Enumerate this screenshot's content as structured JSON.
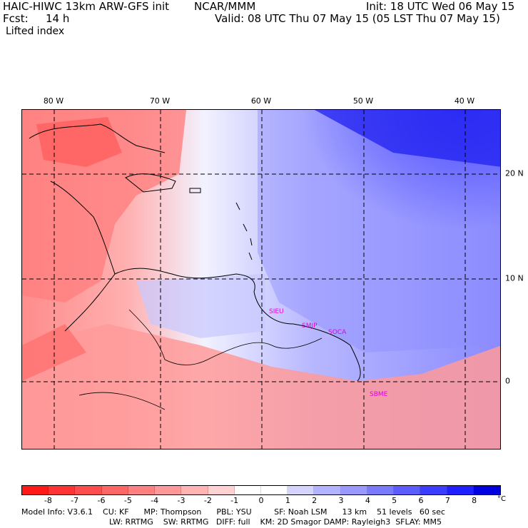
{
  "header": {
    "model": "HAIC-HIWC 13km ARW-GFS init",
    "org": "NCAR/MMM",
    "init": "Init: 18 UTC Wed 06 May 15",
    "fcst_label": "Fcst:",
    "fcst_value": "14 h",
    "valid": "Valid: 08 UTC Thu 07 May 15 (05 LST Thu 07 May 15)",
    "field": "Lifted index"
  },
  "map": {
    "lon_labels": [
      "80 W",
      "70 W",
      "60 W",
      "50 W",
      "40 W"
    ],
    "lat_labels": [
      "20 N",
      "10 N",
      "0"
    ],
    "stations": [
      "SIEU",
      "SMJP",
      "SOCA",
      "SBME"
    ]
  },
  "colorbar": {
    "unit": "°C",
    "ticks": [
      "-8",
      "-7",
      "-6",
      "-5",
      "-4",
      "-3",
      "-2",
      "-1",
      "0",
      "1",
      "2",
      "3",
      "4",
      "5",
      "6",
      "7",
      "8"
    ],
    "colors": [
      "#ff1a1a",
      "#ff3333",
      "#ff4d4d",
      "#ff6666",
      "#ff8080",
      "#ff9999",
      "#ffb3b3",
      "#ffd1d1",
      "#ffffff",
      "#ffffff",
      "#d4d4ff",
      "#b3b3ff",
      "#9999ff",
      "#7a7aff",
      "#5c5cff",
      "#3d3dff",
      "#1f1fff",
      "#0000e0"
    ]
  },
  "footer": {
    "line1": "Model Info: V3.6.1    CU: KF      MP: Thompson      PBL: YSU         SF: Noah LSM      13 km    51 levels   60 sec",
    "line2": "LW: RRTMG    SW: RRTMG   DIFF: full    KM: 2D Smagor DAMP: Rayleigh3  SFLAY: MM5"
  }
}
